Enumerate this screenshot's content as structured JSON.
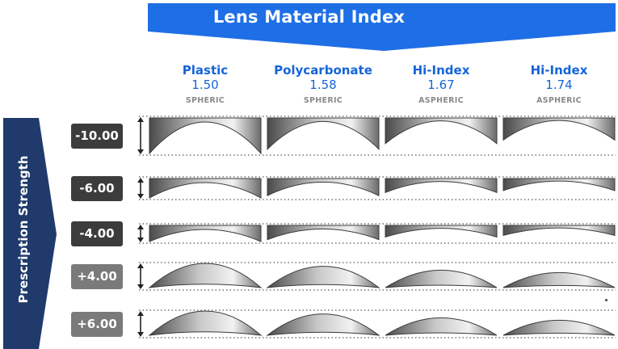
{
  "title": "Lens Material Index",
  "row_axis_label": "Prescription Strength",
  "colors": {
    "banner": "#1e6fe6",
    "side_bar": "#1f3a6b",
    "material_text": "#1565d8",
    "type_text": "#8a8a8a",
    "minus_badge": "#3c3c3c",
    "plus_badge": "#7a7a7a",
    "lens_dark": "#4a4a4a",
    "lens_light": "#f2f2f2",
    "guide": "#555555"
  },
  "materials": [
    {
      "name": "Plastic",
      "index": "1.50",
      "type": "SPHERIC"
    },
    {
      "name": "Polycarbonate",
      "index": "1.58",
      "type": "SPHERIC"
    },
    {
      "name": "Hi-Index",
      "index": "1.67",
      "type": "ASPHERIC"
    },
    {
      "name": "Hi-Index",
      "index": "1.74",
      "type": "ASPHERIC"
    }
  ],
  "prescriptions": [
    {
      "label": "-10.00",
      "power": -10,
      "badge": "dark"
    },
    {
      "label": "-6.00",
      "power": -6,
      "badge": "dark"
    },
    {
      "label": "-4.00",
      "power": -4,
      "badge": "dark"
    },
    {
      "label": "+4.00",
      "power": 4,
      "badge": "light"
    },
    {
      "label": "+6.00",
      "power": 6,
      "badge": "light"
    }
  ]
}
